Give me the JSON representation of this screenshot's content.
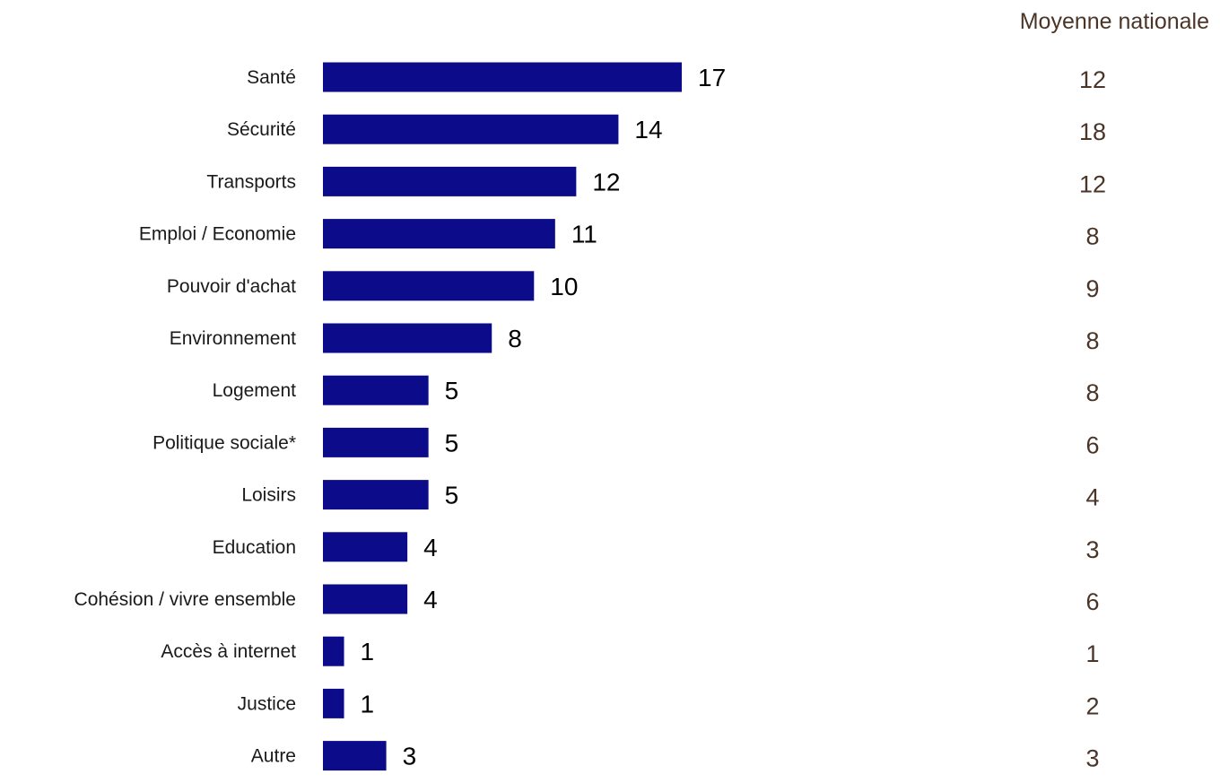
{
  "chart_data": {
    "type": "bar",
    "orientation": "horizontal",
    "categories": [
      "Santé",
      "Sécurité",
      "Transports",
      "Emploi / Economie",
      "Pouvoir d'achat",
      "Environnement",
      "Logement",
      "Politique sociale*",
      "Loisirs",
      "Education",
      "Cohésion / vivre ensemble",
      "Accès à internet",
      "Justice",
      "Autre"
    ],
    "values": [
      17,
      14,
      12,
      11,
      10,
      8,
      5,
      5,
      5,
      4,
      4,
      1,
      1,
      3
    ],
    "comparison_header": "Moyenne nationale",
    "comparison_values": [
      12,
      18,
      12,
      8,
      9,
      8,
      8,
      6,
      4,
      3,
      6,
      1,
      2,
      3
    ],
    "xlim": [
      0,
      17
    ],
    "grid": false,
    "legend": "none",
    "colors": {
      "bar": "#0c0c8a",
      "value_text": "#000000",
      "comparison_text": "#4a3528",
      "category_text": "#1a1a1a"
    }
  }
}
